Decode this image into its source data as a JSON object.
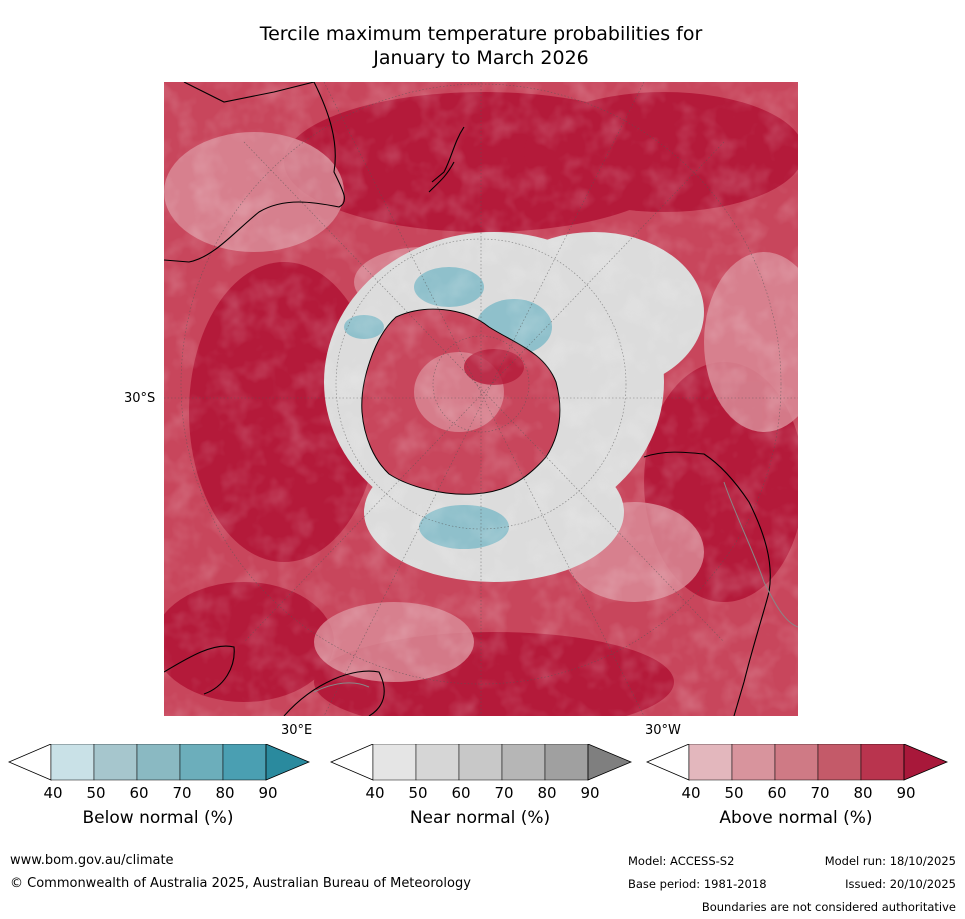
{
  "title": {
    "line1": "Tercile maximum temperature probabilities for",
    "line2": "January to March 2026"
  },
  "map": {
    "projection": "south-polar-stereographic",
    "lat_label": "30°S",
    "lon_labels": {
      "east": "30°E",
      "west": "30°W"
    },
    "colors": {
      "above_high": "#b41a3a",
      "above_mid": "#c8465c",
      "above_low": "#d98b97",
      "near": "#dcdcdc",
      "below": "#8fc0cb",
      "coast": "#000000",
      "border": "#888888"
    }
  },
  "colorbars": [
    {
      "label": "Below normal (%)",
      "ticks": [
        "40",
        "50",
        "60",
        "70",
        "80",
        "90"
      ],
      "colors": [
        "#ffffff",
        "#c9e1e7",
        "#a6c6cd",
        "#8ab9c2",
        "#6caebb",
        "#4a9fb2",
        "#2a8a9e"
      ]
    },
    {
      "label": "Near normal (%)",
      "ticks": [
        "40",
        "50",
        "60",
        "70",
        "80",
        "90"
      ],
      "colors": [
        "#ffffff",
        "#e5e5e5",
        "#d6d6d6",
        "#c8c8c8",
        "#b6b6b6",
        "#a0a0a0",
        "#7f7f7f"
      ]
    },
    {
      "label": "Above normal (%)",
      "ticks": [
        "40",
        "50",
        "60",
        "70",
        "80",
        "90"
      ],
      "colors": [
        "#ffffff",
        "#e3b7bd",
        "#d8949d",
        "#cf7a85",
        "#c45a69",
        "#b9344e",
        "#a8183a"
      ]
    }
  ],
  "footer": {
    "website": "www.bom.gov.au/climate",
    "copyright": "© Commonwealth of Australia 2025, Australian Bureau of Meteorology",
    "model": "Model: ACCESS-S2",
    "base_period": "Base period: 1981-2018",
    "model_run": "Model run: 18/10/2025",
    "issued": "Issued: 20/10/2025",
    "disclaimer": "Boundaries are not considered authoritative"
  }
}
